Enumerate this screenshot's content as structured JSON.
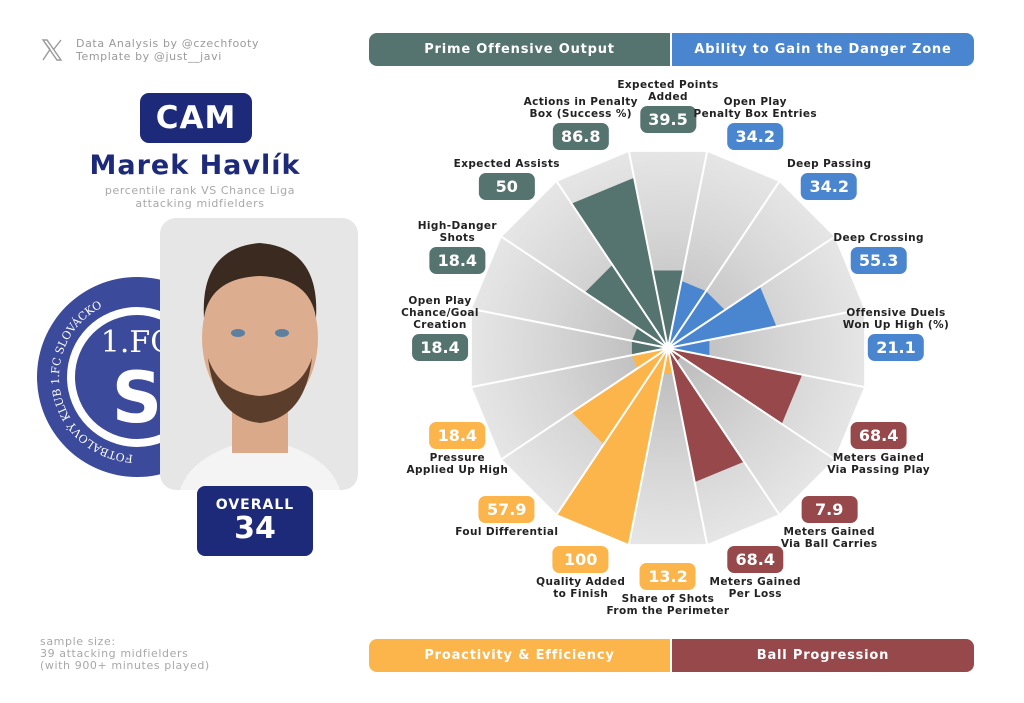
{
  "credits": {
    "line1": "Data Analysis by @czechfooty",
    "line2": "Template by @just__javi"
  },
  "player": {
    "position": "CAM",
    "name": "Marek Havlík",
    "subtitle1": "percentile rank VS Chance Liga",
    "subtitle2": "attacking midfielders",
    "overall_label": "OVERALL",
    "overall_value": "34",
    "club_logo_text": "FOTBALOVÝ KLUB 1.FC SLOVÁCKO"
  },
  "sample": {
    "line1": "sample size:",
    "line2": "39 attacking midfielders",
    "line3": "(with 900+ minutes played)"
  },
  "groups": [
    {
      "name": "Prime Offensive Output",
      "color": "#55736f"
    },
    {
      "name": "Ability to Gain the Danger Zone",
      "color": "#4a86d0"
    },
    {
      "name": "Proactivity & Efficiency",
      "color": "#fbb54b"
    },
    {
      "name": "Ball Progression",
      "color": "#96484a"
    }
  ],
  "chart_data": {
    "type": "pie",
    "subtype": "polar-bar (pizza)",
    "range": [
      0,
      100
    ],
    "categories": [
      "Expected Points\nAdded",
      "Open Play\nPenalty Box Entries",
      "Deep Passing",
      "Deep Crossing",
      "Offensive Duels\nWon Up High (%)",
      "Meters Gained\nVia Passing Play",
      "Meters Gained\nVia Ball Carries",
      "Meters Gained\nPer Loss",
      "Share of Shots\nFrom the Perimeter",
      "Quality Added\nto Finish",
      "Foul Differential",
      "Pressure\nApplied Up High",
      "Open Play\nChance/Goal\nCreation",
      "High-Danger\nShots",
      "Expected Assists",
      "Actions in Penalty\nBox (Success %)"
    ],
    "values": [
      39.5,
      34.2,
      34.2,
      55.3,
      21.1,
      68.4,
      7.9,
      68.4,
      13.2,
      100,
      57.9,
      18.4,
      18.4,
      18.4,
      50,
      86.8
    ],
    "group_index": [
      0,
      1,
      1,
      1,
      1,
      3,
      3,
      3,
      2,
      2,
      2,
      2,
      0,
      0,
      0,
      0
    ]
  }
}
